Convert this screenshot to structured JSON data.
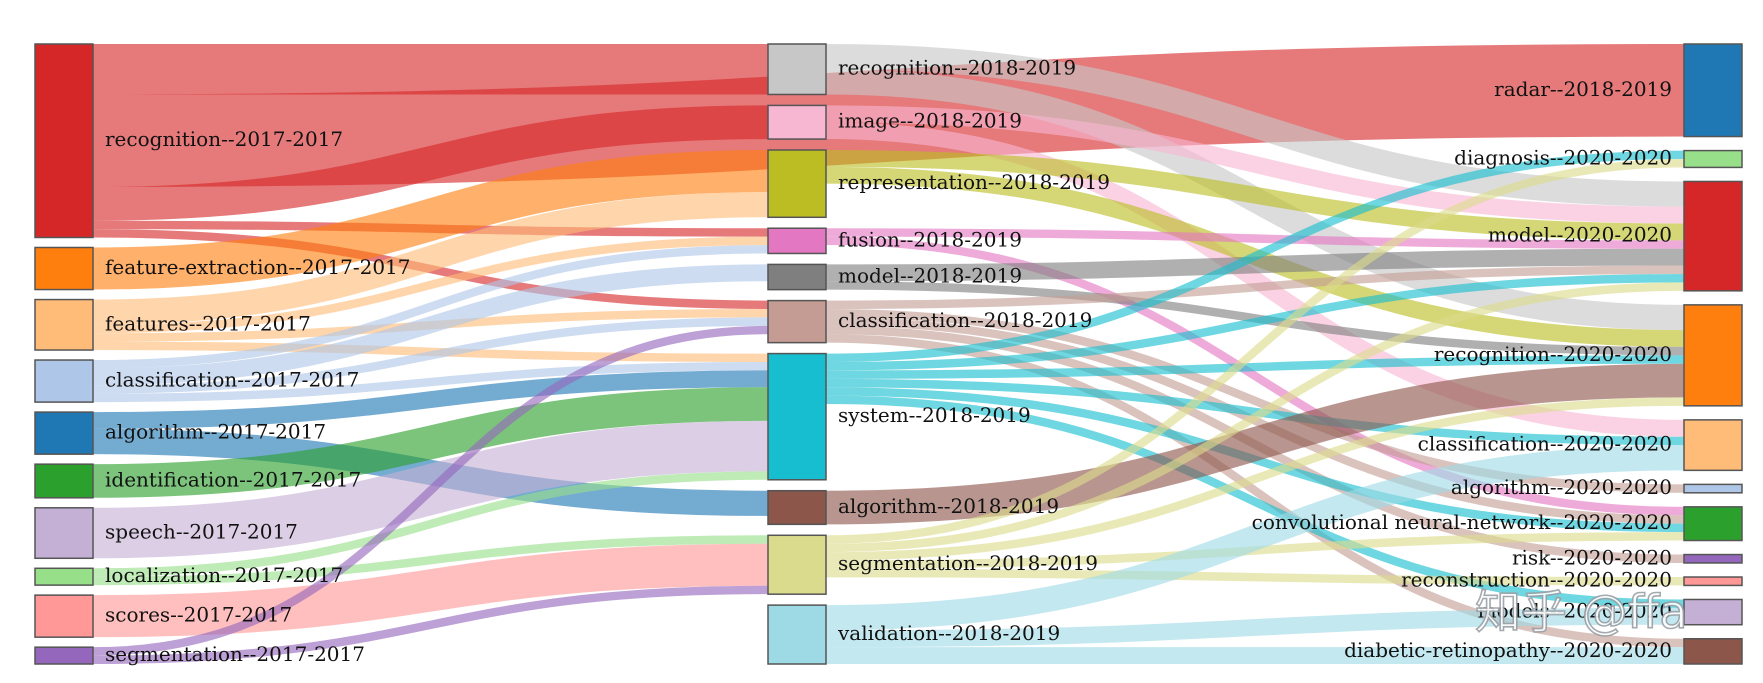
{
  "chart_data": {
    "type": "sankey",
    "title": "",
    "columns": [
      [
        {
          "id": "recognition--2017-2017",
          "color": "#d62728"
        },
        {
          "id": "feature-extraction--2017-2017",
          "color": "#ff7f0e"
        },
        {
          "id": "features--2017-2017",
          "color": "#ffbb78"
        },
        {
          "id": "classification--2017-2017",
          "color": "#aec7e8"
        },
        {
          "id": "algorithm--2017-2017",
          "color": "#1f77b4"
        },
        {
          "id": "identification--2017-2017",
          "color": "#2ca02c"
        },
        {
          "id": "speech--2017-2017",
          "color": "#c5b0d5"
        },
        {
          "id": "localization--2017-2017",
          "color": "#98df8a"
        },
        {
          "id": "scores--2017-2017",
          "color": "#ff9896"
        },
        {
          "id": "segmentation--2017-2017",
          "color": "#9467bd"
        }
      ],
      [
        {
          "id": "recognition--2018-2019",
          "color": "#c7c7c7"
        },
        {
          "id": "image--2018-2019",
          "color": "#f7b6d2"
        },
        {
          "id": "representation--2018-2019",
          "color": "#bcbd22"
        },
        {
          "id": "fusion--2018-2019",
          "color": "#e377c2"
        },
        {
          "id": "model--2018-2019",
          "color": "#7f7f7f"
        },
        {
          "id": "classification--2018-2019",
          "color": "#c49c94"
        },
        {
          "id": "system--2018-2019",
          "color": "#17becf"
        },
        {
          "id": "algorithm--2018-2019",
          "color": "#8c564b"
        },
        {
          "id": "segmentation--2018-2019",
          "color": "#dbdb8d"
        },
        {
          "id": "validation--2018-2019",
          "color": "#9edae5"
        }
      ],
      [
        {
          "id": "radar--2018-2019",
          "color": "#1f77b4"
        },
        {
          "id": "diagnosis--2020-2020",
          "color": "#98df8a"
        },
        {
          "id": "model--2020-2020",
          "color": "#d62728"
        },
        {
          "id": "recognition--2020-2020",
          "color": "#ff7f0e"
        },
        {
          "id": "classification--2020-2020",
          "color": "#ffbb78"
        },
        {
          "id": "algorithm--2020-2020",
          "color": "#aec7e8"
        },
        {
          "id": "convolutional neural-network--2020-2020",
          "color": "#2ca02c"
        },
        {
          "id": "risk--2020-2020",
          "color": "#9467bd"
        },
        {
          "id": "reconstruction--2020-2020",
          "color": "#ff9896"
        },
        {
          "id": "models--2020-2020",
          "color": "#c5b0d5"
        },
        {
          "id": "diabetic-retinopathy--2020-2020",
          "color": "#8c564b"
        }
      ]
    ],
    "links": [
      {
        "source": "recognition--2017-2017",
        "target": "recognition--2018-2019",
        "value": 6
      },
      {
        "source": "recognition--2017-2017",
        "target": "radar--2018-2019",
        "value": 11
      },
      {
        "source": "recognition--2017-2017",
        "target": "image--2018-2019",
        "value": 4
      },
      {
        "source": "recognition--2017-2017",
        "target": "fusion--2018-2019",
        "value": 1
      },
      {
        "source": "recognition--2017-2017",
        "target": "classification--2018-2019",
        "value": 1
      },
      {
        "source": "feature-extraction--2017-2017",
        "target": "representation--2018-2019",
        "value": 5
      },
      {
        "source": "features--2017-2017",
        "target": "representation--2018-2019",
        "value": 3
      },
      {
        "source": "features--2017-2017",
        "target": "fusion--2018-2019",
        "value": 1
      },
      {
        "source": "features--2017-2017",
        "target": "classification--2018-2019",
        "value": 1
      },
      {
        "source": "features--2017-2017",
        "target": "system--2018-2019",
        "value": 1
      },
      {
        "source": "classification--2017-2017",
        "target": "fusion--2018-2019",
        "value": 1
      },
      {
        "source": "classification--2017-2017",
        "target": "model--2018-2019",
        "value": 2
      },
      {
        "source": "classification--2017-2017",
        "target": "classification--2018-2019",
        "value": 1
      },
      {
        "source": "classification--2017-2017",
        "target": "system--2018-2019",
        "value": 1
      },
      {
        "source": "algorithm--2017-2017",
        "target": "system--2018-2019",
        "value": 2
      },
      {
        "source": "algorithm--2017-2017",
        "target": "algorithm--2018-2019",
        "value": 3
      },
      {
        "source": "identification--2017-2017",
        "target": "system--2018-2019",
        "value": 4
      },
      {
        "source": "speech--2017-2017",
        "target": "system--2018-2019",
        "value": 6
      },
      {
        "source": "localization--2017-2017",
        "target": "system--2018-2019",
        "value": 1
      },
      {
        "source": "localization--2017-2017",
        "target": "segmentation--2018-2019",
        "value": 1
      },
      {
        "source": "scores--2017-2017",
        "target": "segmentation--2018-2019",
        "value": 5
      },
      {
        "source": "segmentation--2017-2017",
        "target": "classification--2018-2019",
        "value": 1
      },
      {
        "source": "segmentation--2017-2017",
        "target": "segmentation--2018-2019",
        "value": 1
      },
      {
        "source": "recognition--2018-2019",
        "target": "model--2020-2020",
        "value": 3
      },
      {
        "source": "recognition--2018-2019",
        "target": "recognition--2020-2020",
        "value": 3
      },
      {
        "source": "image--2018-2019",
        "target": "model--2020-2020",
        "value": 2
      },
      {
        "source": "image--2018-2019",
        "target": "classification--2020-2020",
        "value": 2
      },
      {
        "source": "representation--2018-2019",
        "target": "model--2020-2020",
        "value": 2
      },
      {
        "source": "representation--2018-2019",
        "target": "recognition--2020-2020",
        "value": 2
      },
      {
        "source": "fusion--2018-2019",
        "target": "model--2020-2020",
        "value": 1
      },
      {
        "source": "fusion--2018-2019",
        "target": "convolutional neural-network--2020-2020",
        "value": 1
      },
      {
        "source": "model--2018-2019",
        "target": "model--2020-2020",
        "value": 2
      },
      {
        "source": "model--2018-2019",
        "target": "recognition--2020-2020",
        "value": 1
      },
      {
        "source": "classification--2018-2019",
        "target": "model--2020-2020",
        "value": 1
      },
      {
        "source": "classification--2018-2019",
        "target": "algorithm--2020-2020",
        "value": 1
      },
      {
        "source": "classification--2018-2019",
        "target": "convolutional neural-network--2020-2020",
        "value": 1
      },
      {
        "source": "classification--2018-2019",
        "target": "risk--2020-2020",
        "value": 1
      },
      {
        "source": "classification--2018-2019",
        "target": "diabetic-retinopathy--2020-2020",
        "value": 1
      },
      {
        "source": "system--2018-2019",
        "target": "diagnosis--2020-2020",
        "value": 1
      },
      {
        "source": "system--2018-2019",
        "target": "model--2020-2020",
        "value": 1
      },
      {
        "source": "system--2018-2019",
        "target": "recognition--2020-2020",
        "value": 1
      },
      {
        "source": "system--2018-2019",
        "target": "classification--2020-2020",
        "value": 1
      },
      {
        "source": "system--2018-2019",
        "target": "convolutional neural-network--2020-2020",
        "value": 1
      },
      {
        "source": "system--2018-2019",
        "target": "models--2020-2020",
        "value": 1
      },
      {
        "source": "algorithm--2018-2019",
        "target": "recognition--2020-2020",
        "value": 4
      },
      {
        "source": "segmentation--2018-2019",
        "target": "diagnosis--2020-2020",
        "value": 1
      },
      {
        "source": "segmentation--2018-2019",
        "target": "model--2020-2020",
        "value": 1
      },
      {
        "source": "segmentation--2018-2019",
        "target": "recognition--2020-2020",
        "value": 1
      },
      {
        "source": "segmentation--2018-2019",
        "target": "convolutional neural-network--2020-2020",
        "value": 1
      },
      {
        "source": "segmentation--2018-2019",
        "target": "reconstruction--2020-2020",
        "value": 1
      },
      {
        "source": "validation--2018-2019",
        "target": "classification--2020-2020",
        "value": 3
      },
      {
        "source": "validation--2018-2019",
        "target": "models--2020-2020",
        "value": 2
      },
      {
        "source": "validation--2018-2019",
        "target": "diabetic-retinopathy--2020-2020",
        "value": 2
      }
    ]
  },
  "watermark": "知乎 @ffa"
}
